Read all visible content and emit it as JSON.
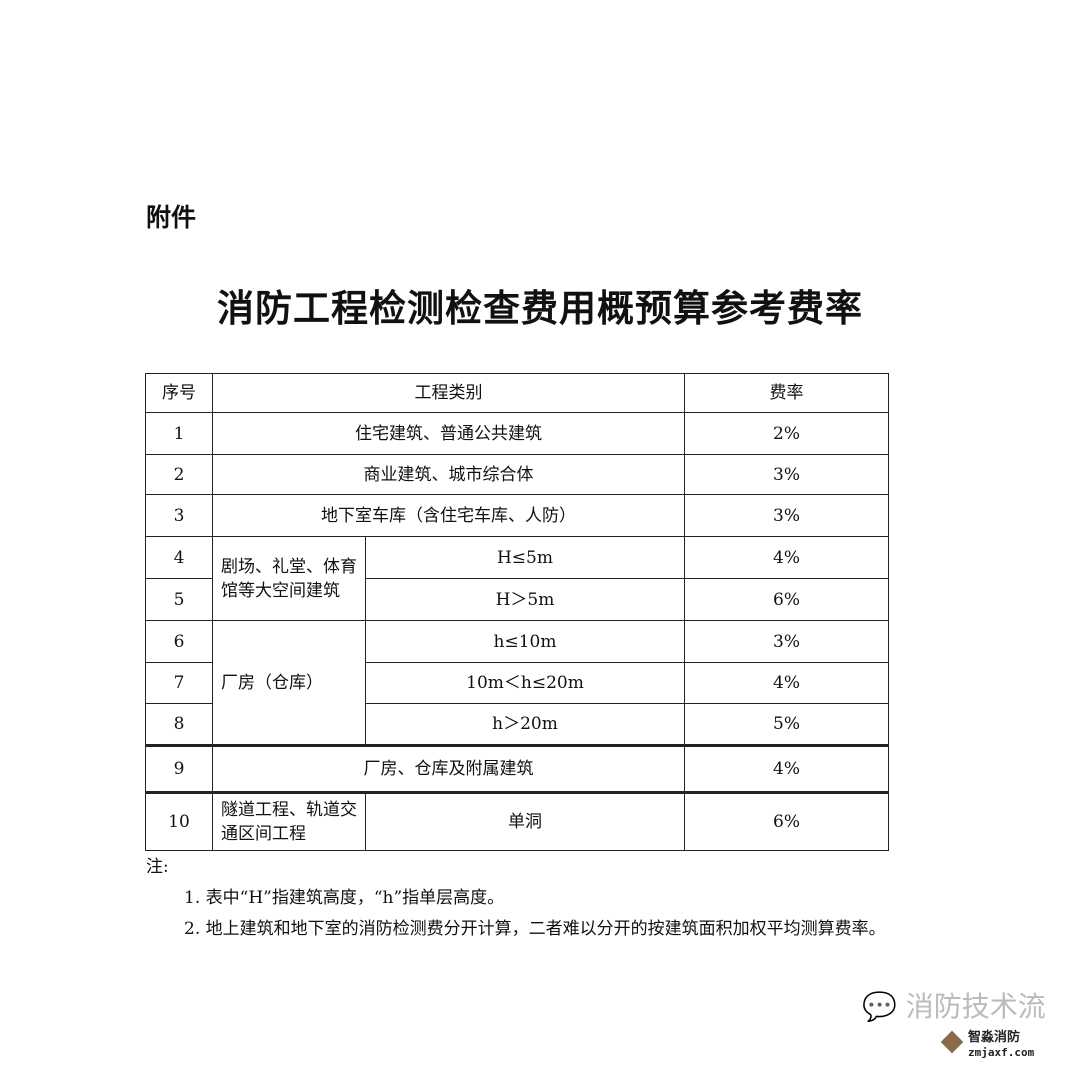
{
  "attachment_label": "附件",
  "title": "消防工程检测检查费用概预算参考费率",
  "table": {
    "headers": {
      "no": "序号",
      "category": "工程类别",
      "rate": "费率"
    },
    "rows": [
      {
        "no": "1",
        "category": "住宅建筑、普通公共建筑",
        "rate": "2%"
      },
      {
        "no": "2",
        "category": "商业建筑、城市综合体",
        "rate": "3%"
      },
      {
        "no": "3",
        "category": "地下室车库（含住宅车库、人防）",
        "rate": "3%"
      },
      {
        "no": "4",
        "group": "剧场、礼堂、体育馆等大空间建筑",
        "sub": "H≤5m",
        "rate": "4%"
      },
      {
        "no": "5",
        "sub": "H＞5m",
        "rate": "6%"
      },
      {
        "no": "6",
        "group": "厂房（仓库）",
        "sub": "h≤10m",
        "rate": "3%"
      },
      {
        "no": "7",
        "sub": "10m＜h≤20m",
        "rate": "4%"
      },
      {
        "no": "8",
        "sub": "h＞20m",
        "rate": "5%"
      },
      {
        "no": "9",
        "category": "厂房、仓库及附属建筑",
        "rate": "4%"
      },
      {
        "no": "10",
        "group": "隧道工程、轨道交通区间工程",
        "sub": "单洞",
        "rate": "6%"
      }
    ]
  },
  "notes": {
    "label": "注:",
    "items": [
      "1. 表中“H”指建筑高度，“h”指单层高度。",
      "2. 地上建筑和地下室的消防检测费分开计算，二者难以分开的按建筑面积加权平均测算费率。"
    ]
  },
  "watermark": {
    "text": "消防技术流",
    "brand": "智淼消防",
    "url": "zmjaxf.com"
  }
}
